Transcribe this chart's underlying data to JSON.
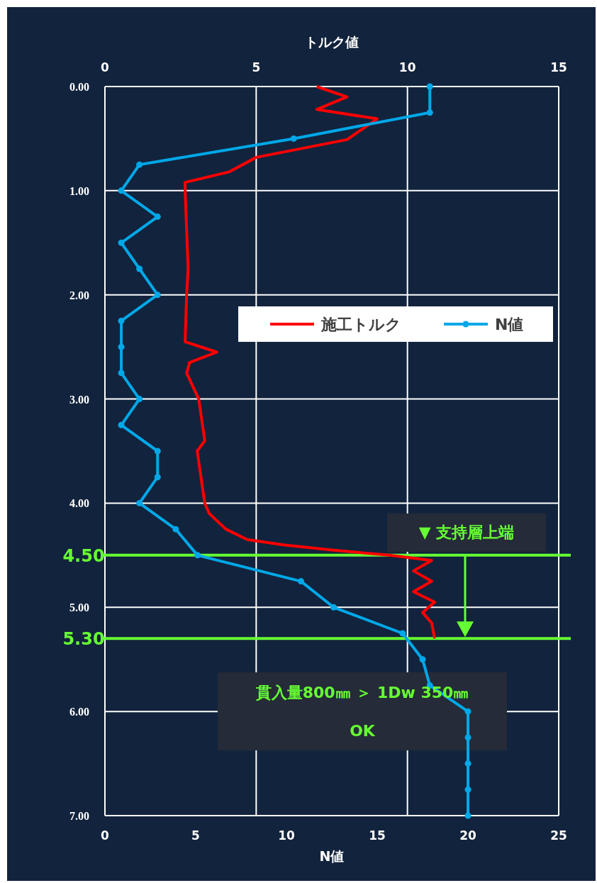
{
  "chart_data": {
    "type": "line",
    "xlabel": "N値",
    "x2label": "トルク値",
    "xlim": [
      0,
      25
    ],
    "xticks": [
      0,
      5,
      10,
      15,
      20,
      25
    ],
    "x2lim": [
      0,
      15
    ],
    "x2ticks": [
      0,
      5,
      10,
      15
    ],
    "ylim": [
      7,
      0
    ],
    "yticks": [
      {
        "value": 0,
        "label": "0.00"
      },
      {
        "value": 1,
        "label": "1.00"
      },
      {
        "value": 2,
        "label": "2.00"
      },
      {
        "value": 3,
        "label": "3.00"
      },
      {
        "value": 4,
        "label": "4.00"
      },
      {
        "value": 5,
        "label": "5.00"
      },
      {
        "value": 6,
        "label": "6.00"
      },
      {
        "value": 7,
        "label": "7.00"
      }
    ],
    "grid": true,
    "legend": "right",
    "series": [
      {
        "name": "施工トルク",
        "color": "#ff0000",
        "axis": "x2",
        "marker": "none",
        "x": [
          7.0,
          8.0,
          7.0,
          9.0,
          8.6,
          8.0,
          5.0,
          4.1,
          2.65,
          2.65,
          2.75,
          2.7,
          2.65,
          3.7,
          2.8,
          2.7,
          3.1,
          3.3,
          3.05,
          3.3,
          3.45,
          4.0,
          4.7,
          5.9,
          7.5,
          9.4,
          10.8,
          10.2,
          10.8,
          10.2,
          10.9,
          10.5,
          10.8,
          10.9
        ],
        "values": [
          0,
          0.1,
          0.22,
          0.31,
          0.39,
          0.51,
          0.68,
          0.82,
          0.92,
          1.0,
          1.75,
          2.0,
          2.45,
          2.55,
          2.65,
          2.75,
          3.0,
          3.4,
          3.5,
          4.0,
          4.1,
          4.25,
          4.35,
          4.4,
          4.45,
          4.5,
          4.55,
          4.65,
          4.75,
          4.85,
          4.95,
          5.05,
          5.15,
          5.3
        ]
      },
      {
        "name": "N値",
        "color": "#00a8e8",
        "marker": "circle",
        "x": [
          17.9,
          17.9,
          10.4,
          1.9,
          0.9,
          2.9,
          0.9,
          1.9,
          2.9,
          0.9,
          0.9,
          0.9,
          1.9,
          0.9,
          2.9,
          2.9,
          1.9,
          3.9,
          5.1,
          10.8,
          12.6,
          16.4,
          17.5,
          17.9,
          20.0,
          20.0,
          20.0,
          20.0,
          20.0
        ],
        "values": [
          0,
          0.25,
          0.5,
          0.75,
          1.0,
          1.25,
          1.5,
          1.75,
          2.0,
          2.25,
          2.5,
          2.75,
          3.0,
          3.25,
          3.5,
          3.75,
          4.0,
          4.25,
          4.5,
          4.75,
          5.0,
          5.25,
          5.5,
          5.75,
          6.0,
          6.25,
          6.5,
          6.75,
          7.0
        ]
      }
    ],
    "ref_lines": [
      {
        "axis": "y",
        "value": 4.5,
        "label": "4.50",
        "color": "#66ff33"
      },
      {
        "axis": "y",
        "value": 5.3,
        "label": "5.30",
        "color": "#66ff33"
      }
    ],
    "annotations": [
      "▼ 支持層上端",
      "貫入量800㎜ ＞ 1Dw 350㎜",
      "OK"
    ]
  }
}
